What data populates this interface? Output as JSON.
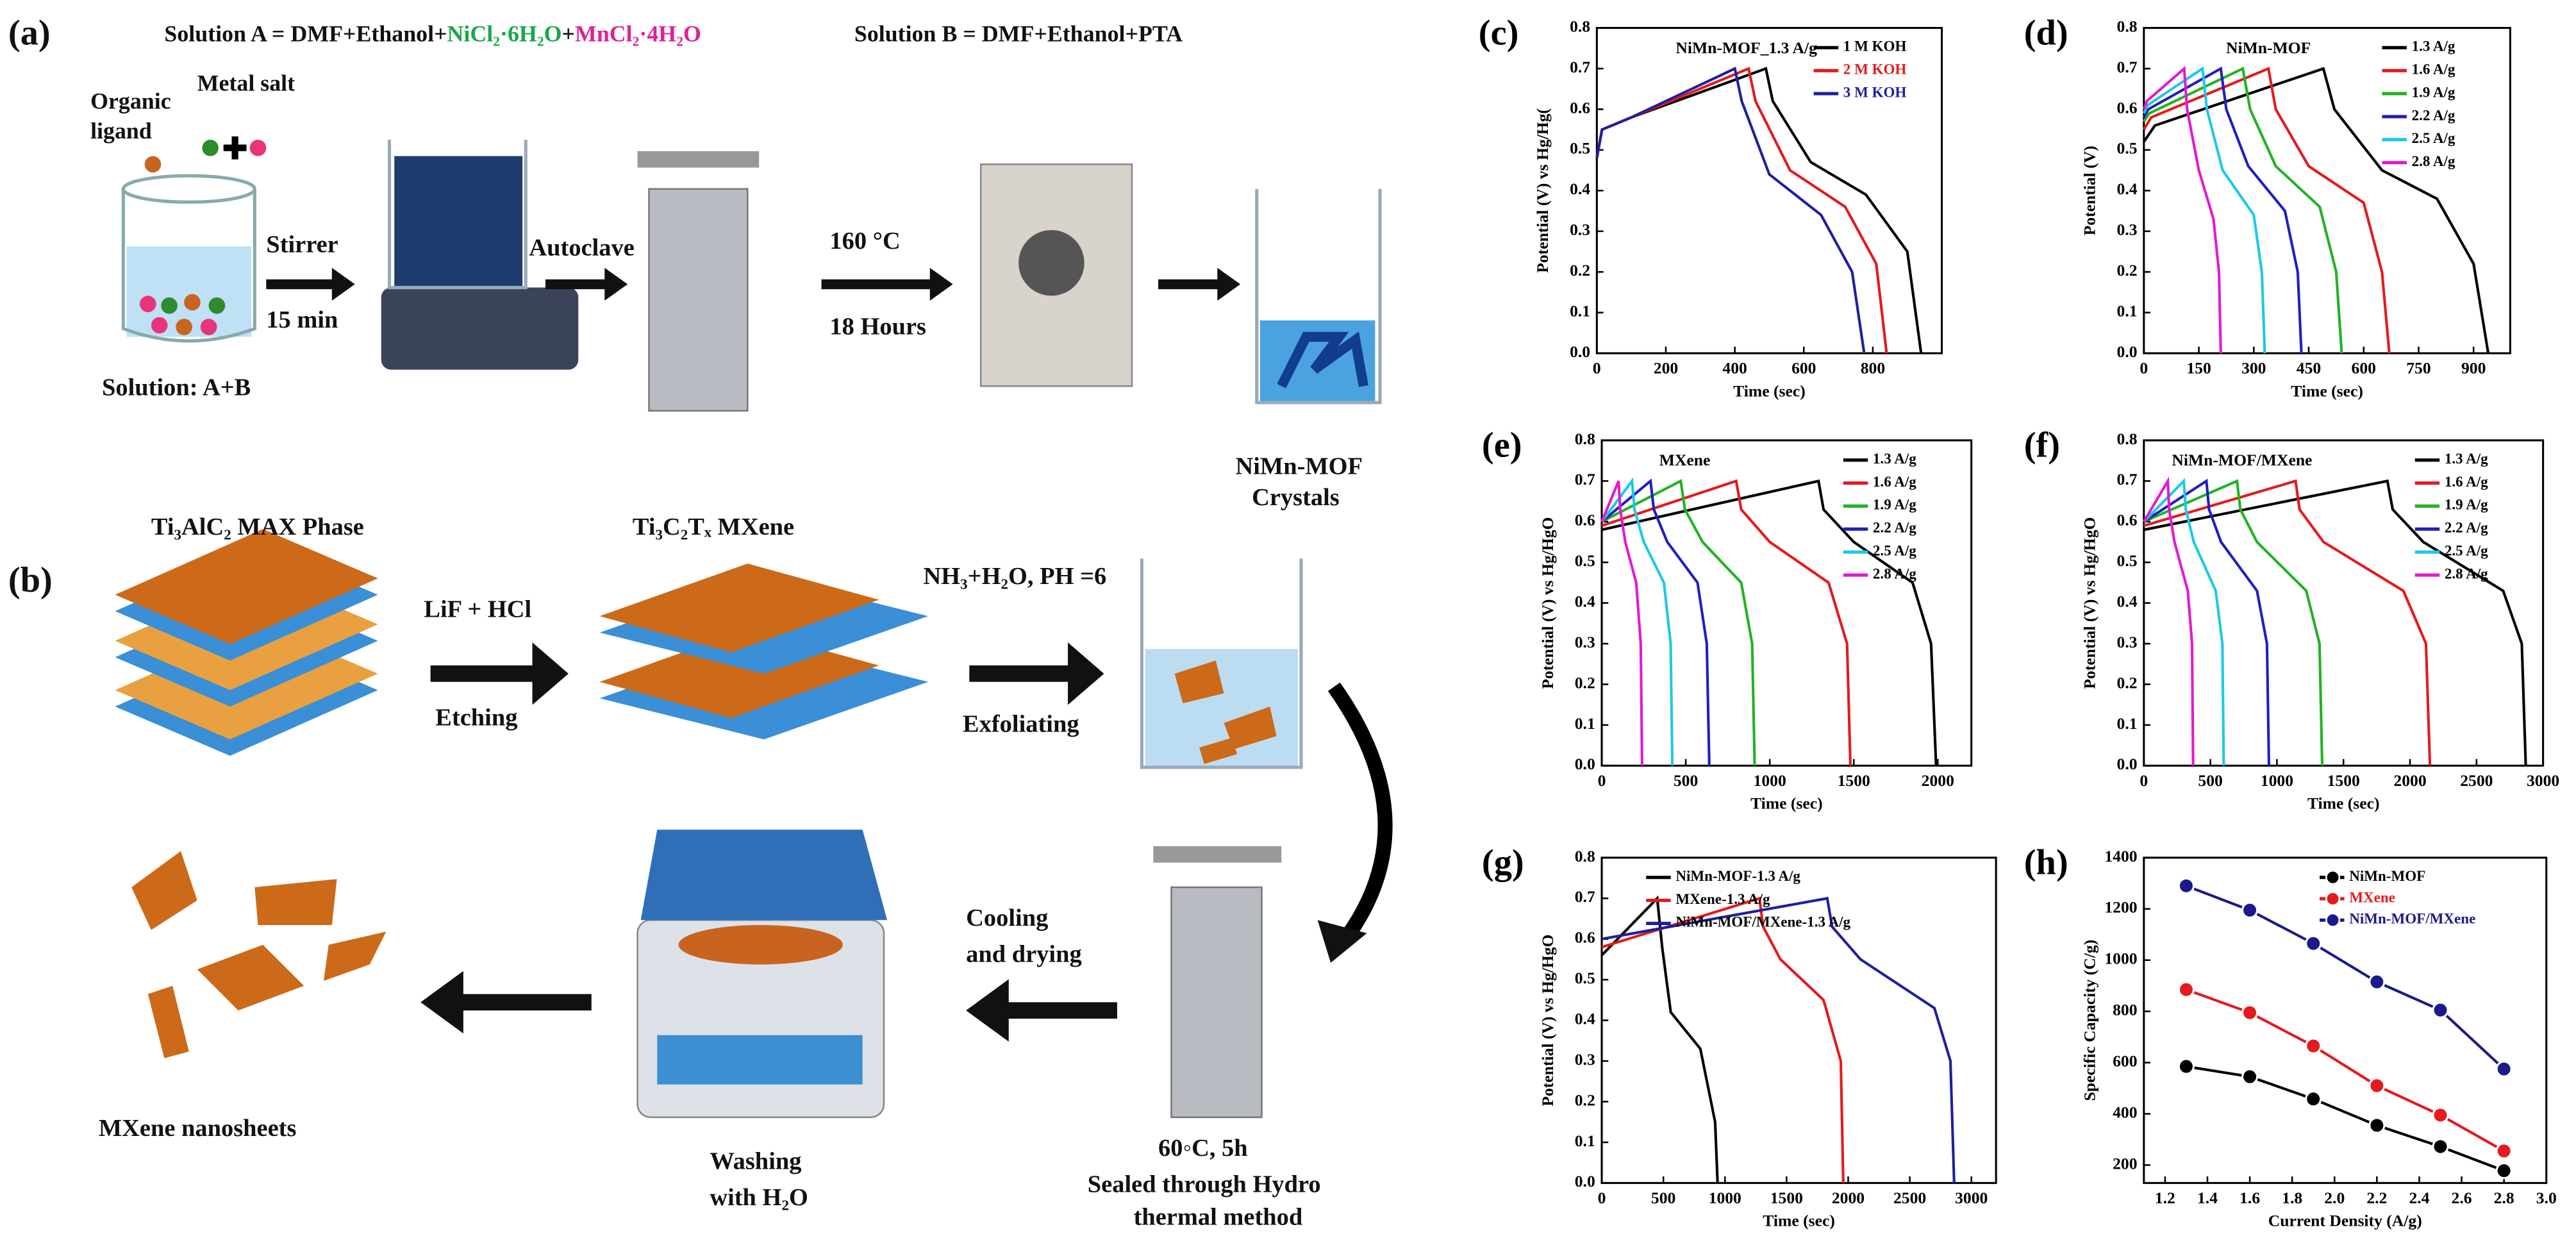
{
  "diagram": {
    "a_label": "(a)",
    "solution_a_prefix": "Solution A = DMF+Ethanol+",
    "solution_a_ni": "NiCl₂·6H₂O",
    "solution_a_plus": "+",
    "solution_a_mn": "MnCl₂·4H₂O",
    "solution_b": "Solution B = DMF+Ethanol+PTA",
    "organic_1": "Organic",
    "organic_2": "ligand",
    "metal_salt": "Metal salt",
    "stirrer": "Stirrer",
    "stir_time": "15 min",
    "autoclave": "Autoclave",
    "temp": "160 °C",
    "hours": "18 Hours",
    "solution_ab": "Solution: A+B",
    "mof_1": "NiMn-MOF",
    "mof_2": "Crystals",
    "b_label": "(b)",
    "max_phase": "Ti₃AlC₂ MAX Phase",
    "mxene": "Ti₃C₂Tₓ MXene",
    "lif": "LiF + HCl",
    "etching": "Etching",
    "nh3": "NH₃+H₂O, PH =6",
    "exfoliating": "Exfoliating",
    "cooling_1": "Cooling",
    "cooling_2": "and drying",
    "hydro_1": "60◦C, 5h",
    "hydro_2": "Sealed through Hydro",
    "hydro_3": "thermal method",
    "washing_1": "Washing",
    "washing_2": "with H₂O",
    "nanosheets": "MXene nanosheets"
  },
  "chart_data": [
    {
      "type": "line",
      "label": "(c)",
      "title": "NiMn-MOF_1.3 A/g",
      "x_label": "Time (sec)",
      "y_label": "Potential (V) vs Hg/Hg(",
      "legend": "upper right",
      "xlim": [
        0,
        1000
      ],
      "xticks": [
        0,
        200,
        400,
        600,
        800
      ],
      "ylim": [
        0,
        0.8
      ],
      "yticks": [
        {
          "value": 0,
          "label": "0.0"
        },
        0.1,
        0.2,
        0.3,
        0.4,
        0.5,
        0.6,
        0.7,
        0.8
      ],
      "series": [
        {
          "name": "1 M KOH",
          "color": "#000000",
          "x": [
            0,
            15,
            100,
            490,
            510,
            620,
            780,
            900,
            940
          ],
          "values": [
            0.48,
            0.55,
            0.58,
            0.7,
            0.62,
            0.47,
            0.39,
            0.25,
            0
          ]
        },
        {
          "name": "2 M KOH",
          "color": "#e41a1c",
          "x": [
            0,
            15,
            100,
            440,
            460,
            560,
            720,
            810,
            840
          ],
          "values": [
            0.48,
            0.55,
            0.58,
            0.7,
            0.62,
            0.45,
            0.36,
            0.22,
            0
          ]
        },
        {
          "name": "3 M KOH",
          "color": "#1f1f9e",
          "x": [
            0,
            15,
            100,
            400,
            420,
            500,
            650,
            740,
            775
          ],
          "values": [
            0.48,
            0.55,
            0.58,
            0.7,
            0.62,
            0.44,
            0.34,
            0.2,
            0
          ]
        }
      ]
    },
    {
      "type": "line",
      "label": "(d)",
      "title": "NiMn-MOF",
      "x_label": "Time (sec)",
      "y_label": "Potential (V)",
      "legend": "upper right",
      "xlim": [
        0,
        1000
      ],
      "xticks": [
        0,
        150,
        300,
        450,
        600,
        750,
        900
      ],
      "ylim": [
        0,
        0.8
      ],
      "yticks": [
        {
          "value": 0,
          "label": "0.0"
        },
        0.1,
        0.2,
        0.3,
        0.4,
        0.5,
        0.6,
        0.7,
        0.8
      ],
      "series": [
        {
          "name": "1.3 A/g",
          "color": "#000000",
          "x": [
            0,
            30,
            490,
            520,
            650,
            800,
            900,
            940
          ],
          "values": [
            0.52,
            0.56,
            0.7,
            0.6,
            0.45,
            0.38,
            0.22,
            0
          ]
        },
        {
          "name": "1.6 A/g",
          "color": "#e41a1c",
          "x": [
            0,
            20,
            340,
            360,
            450,
            600,
            650,
            670
          ],
          "values": [
            0.55,
            0.58,
            0.7,
            0.6,
            0.46,
            0.37,
            0.2,
            0
          ]
        },
        {
          "name": "1.9 A/g",
          "color": "#22b322",
          "x": [
            0,
            15,
            270,
            290,
            360,
            480,
            525,
            540
          ],
          "values": [
            0.57,
            0.59,
            0.7,
            0.6,
            0.46,
            0.36,
            0.2,
            0
          ]
        },
        {
          "name": "2.2 A/g",
          "color": "#1f1fbf",
          "x": [
            0,
            12,
            210,
            225,
            285,
            385,
            420,
            430
          ],
          "values": [
            0.58,
            0.6,
            0.7,
            0.6,
            0.46,
            0.35,
            0.2,
            0
          ]
        },
        {
          "name": "2.5 A/g",
          "color": "#1ec8e6",
          "x": [
            0,
            10,
            160,
            172,
            215,
            300,
            322,
            330
          ],
          "values": [
            0.59,
            0.61,
            0.7,
            0.6,
            0.45,
            0.34,
            0.2,
            0
          ]
        },
        {
          "name": "2.8 A/g",
          "color": "#e21ad2",
          "x": [
            0,
            8,
            110,
            118,
            150,
            190,
            205,
            210
          ],
          "values": [
            0.6,
            0.62,
            0.7,
            0.6,
            0.45,
            0.33,
            0.2,
            0
          ]
        }
      ]
    },
    {
      "type": "line",
      "label": "(e)",
      "title": "MXene",
      "x_label": "Time (sec)",
      "y_label": "Potential (V) vs Hg/HgO",
      "legend": "upper right",
      "xlim": [
        0,
        2200
      ],
      "xticks": [
        0,
        500,
        1000,
        1500,
        2000
      ],
      "ylim": [
        0,
        0.8
      ],
      "yticks": [
        {
          "value": 0,
          "label": "0.0"
        },
        0.1,
        0.2,
        0.3,
        0.4,
        0.5,
        0.6,
        0.7,
        0.8
      ],
      "series": [
        {
          "name": "1.3 A/g",
          "color": "#000000",
          "x": [
            0,
            1290,
            1320,
            1500,
            1850,
            1960,
            1990
          ],
          "values": [
            0.58,
            0.7,
            0.63,
            0.55,
            0.45,
            0.3,
            0
          ]
        },
        {
          "name": "1.6 A/g",
          "color": "#e41a1c",
          "x": [
            0,
            800,
            830,
            1000,
            1350,
            1460,
            1480
          ],
          "values": [
            0.59,
            0.7,
            0.63,
            0.55,
            0.45,
            0.3,
            0
          ]
        },
        {
          "name": "1.9 A/g",
          "color": "#22b322",
          "x": [
            0,
            470,
            495,
            600,
            830,
            895,
            910
          ],
          "values": [
            0.6,
            0.7,
            0.63,
            0.55,
            0.45,
            0.3,
            0
          ]
        },
        {
          "name": "2.2 A/g",
          "color": "#1f1fbf",
          "x": [
            0,
            290,
            310,
            390,
            570,
            625,
            640
          ],
          "values": [
            0.6,
            0.7,
            0.63,
            0.55,
            0.45,
            0.3,
            0
          ]
        },
        {
          "name": "2.5 A/g",
          "color": "#1ec8e6",
          "x": [
            0,
            180,
            195,
            250,
            370,
            410,
            420
          ],
          "values": [
            0.6,
            0.7,
            0.63,
            0.55,
            0.45,
            0.3,
            0
          ]
        },
        {
          "name": "2.8 A/g",
          "color": "#e21ad2",
          "x": [
            0,
            100,
            110,
            140,
            205,
            232,
            240
          ],
          "values": [
            0.6,
            0.7,
            0.63,
            0.55,
            0.45,
            0.3,
            0
          ]
        }
      ]
    },
    {
      "type": "line",
      "label": "(f)",
      "title": "NiMn-MOF/MXene",
      "x_label": "Time (sec)",
      "y_label": "Potential (V) vs Hg/HgO",
      "legend": "upper right",
      "xlim": [
        0,
        3000
      ],
      "xticks": [
        0,
        500,
        1000,
        1500,
        2000,
        2500,
        3000
      ],
      "ylim": [
        0,
        0.8
      ],
      "yticks": [
        {
          "value": 0,
          "label": "0.0"
        },
        0.1,
        0.2,
        0.3,
        0.4,
        0.5,
        0.6,
        0.7,
        0.8
      ],
      "series": [
        {
          "name": "1.3 A/g",
          "color": "#000000",
          "x": [
            0,
            1830,
            1870,
            2100,
            2700,
            2840,
            2870
          ],
          "values": [
            0.58,
            0.7,
            0.63,
            0.55,
            0.43,
            0.3,
            0
          ]
        },
        {
          "name": "1.6 A/g",
          "color": "#e41a1c",
          "x": [
            0,
            1140,
            1170,
            1350,
            1950,
            2120,
            2150
          ],
          "values": [
            0.59,
            0.7,
            0.63,
            0.55,
            0.43,
            0.3,
            0
          ]
        },
        {
          "name": "1.9 A/g",
          "color": "#22b322",
          "x": [
            0,
            700,
            725,
            850,
            1220,
            1320,
            1340
          ],
          "values": [
            0.6,
            0.7,
            0.63,
            0.55,
            0.43,
            0.3,
            0
          ]
        },
        {
          "name": "2.2 A/g",
          "color": "#1f1fbf",
          "x": [
            0,
            470,
            490,
            580,
            850,
            925,
            940
          ],
          "values": [
            0.6,
            0.7,
            0.63,
            0.55,
            0.43,
            0.3,
            0
          ]
        },
        {
          "name": "2.5 A/g",
          "color": "#1ec8e6",
          "x": [
            0,
            300,
            315,
            375,
            540,
            590,
            600
          ],
          "values": [
            0.6,
            0.7,
            0.63,
            0.55,
            0.43,
            0.3,
            0
          ]
        },
        {
          "name": "2.8 A/g",
          "color": "#e21ad2",
          "x": [
            0,
            180,
            190,
            230,
            330,
            362,
            370
          ],
          "values": [
            0.6,
            0.7,
            0.63,
            0.55,
            0.43,
            0.3,
            0
          ]
        }
      ]
    },
    {
      "type": "line",
      "label": "(g)",
      "x_label": "Time (sec)",
      "y_label": "Potential (V) vs Hg/HgO",
      "legend": "upper center",
      "xlim": [
        0,
        3200
      ],
      "xticks": [
        0,
        500,
        1000,
        1500,
        2000,
        2500,
        3000
      ],
      "ylim": [
        0,
        0.8
      ],
      "yticks": [
        {
          "value": 0,
          "label": "0.0"
        },
        0.1,
        0.2,
        0.3,
        0.4,
        0.5,
        0.6,
        0.7,
        0.8
      ],
      "series": [
        {
          "name": "NiMn-MOF-1.3 A/g",
          "color": "#000000",
          "x": [
            0,
            450,
            490,
            560,
            800,
            920,
            940
          ],
          "values": [
            0.56,
            0.7,
            0.58,
            0.42,
            0.33,
            0.15,
            0
          ]
        },
        {
          "name": "MXene-1.3 A/g",
          "color": "#e41a1c",
          "x": [
            0,
            1280,
            1310,
            1450,
            1800,
            1940,
            1960
          ],
          "values": [
            0.58,
            0.7,
            0.63,
            0.55,
            0.45,
            0.3,
            0
          ]
        },
        {
          "name": "NiMn-MOF/MXene-1.3 A/g",
          "color": "#1f1f9e",
          "x": [
            0,
            1830,
            1870,
            2100,
            2700,
            2830,
            2860
          ],
          "values": [
            0.6,
            0.7,
            0.63,
            0.55,
            0.43,
            0.3,
            0
          ]
        }
      ]
    },
    {
      "type": "line",
      "markers": true,
      "label": "(h)",
      "x_label": "Current Density (A/g)",
      "y_label": "Specific Capacity (C/g)",
      "legend": "upper right",
      "x": [
        1.3,
        1.6,
        1.9,
        2.2,
        2.5,
        2.8
      ],
      "xlim": [
        1.1,
        3.0
      ],
      "xticks": [
        1.2,
        1.4,
        1.6,
        1.8,
        {
          "value": 2,
          "label": "2.0"
        },
        2.2,
        2.4,
        2.6,
        2.8,
        {
          "value": 3,
          "label": "3.0"
        }
      ],
      "ylim": [
        130,
        1400
      ],
      "yticks": [
        200,
        400,
        600,
        800,
        1000,
        1200,
        1400
      ],
      "series": [
        {
          "name": "NiMn-MOF",
          "color": "#000000",
          "values": [
            585,
            545,
            458,
            355,
            272,
            178
          ]
        },
        {
          "name": "MXene",
          "color": "#e41a1c",
          "values": [
            885,
            795,
            665,
            510,
            395,
            255
          ]
        },
        {
          "name": "NiMn-MOF/MXene",
          "color": "#1a1a8c",
          "values": [
            1290,
            1195,
            1065,
            915,
            805,
            575
          ]
        }
      ]
    }
  ]
}
